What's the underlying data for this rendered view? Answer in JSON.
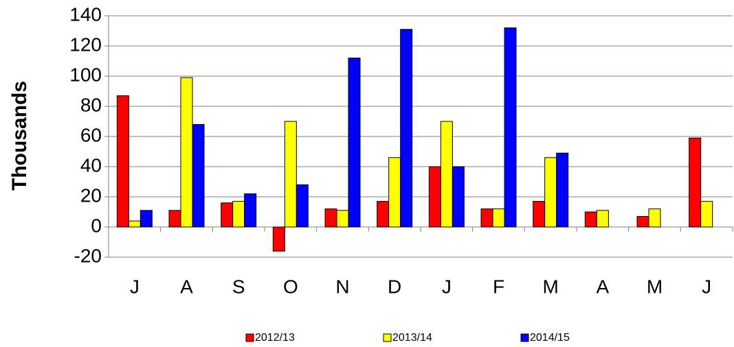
{
  "chart_data": {
    "type": "bar",
    "y_label": "Thousands",
    "categories": [
      "J",
      "A",
      "S",
      "O",
      "N",
      "D",
      "J",
      "F",
      "M",
      "A",
      "M",
      "J"
    ],
    "series": [
      {
        "name": "2012/13",
        "color": "#ff0000",
        "values": [
          87,
          11,
          16,
          -16,
          12,
          17,
          40,
          12,
          17,
          10,
          7,
          59
        ]
      },
      {
        "name": "2013/14",
        "color": "#ffff00",
        "values": [
          4,
          99,
          17,
          70,
          11,
          46,
          70,
          12,
          46,
          11,
          12,
          17
        ]
      },
      {
        "name": "2014/15",
        "color": "#0000ff",
        "values": [
          11,
          68,
          22,
          28,
          112,
          131,
          40,
          132,
          49,
          null,
          null,
          null
        ]
      }
    ],
    "ylim": [
      -20,
      140
    ],
    "yticks": [
      -20,
      0,
      20,
      40,
      60,
      80,
      100,
      120,
      140
    ],
    "grid": true,
    "legend": "bottom"
  }
}
